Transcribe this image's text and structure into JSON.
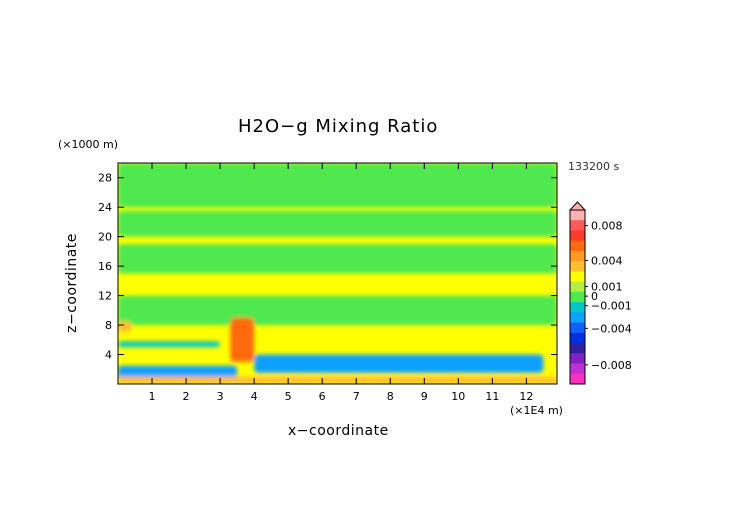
{
  "chart_data": {
    "type": "heatmap",
    "title": "H2O−g Mixing Ratio",
    "xlabel": "x−coordinate",
    "ylabel": "z−coordinate",
    "x_unit": "(×1E4 m)",
    "y_unit": "(×1000 m)",
    "timestamp": "133200 s",
    "xlim": [
      0,
      12.9
    ],
    "ylim": [
      0,
      30
    ],
    "x_ticks": [
      "1",
      "2",
      "3",
      "4",
      "5",
      "6",
      "7",
      "8",
      "9",
      "10",
      "11",
      "12"
    ],
    "y_ticks": [
      "4",
      "8",
      "12",
      "16",
      "20",
      "24",
      "28"
    ],
    "colorbar": {
      "tick_labels": [
        "0.008",
        "0.004",
        "0.001",
        "0",
        "−0.001",
        "−0.004",
        "−0.008"
      ],
      "colors_top_to_bottom": [
        "#ffb0b0",
        "#ff5a5a",
        "#ff3a2a",
        "#ff6a10",
        "#ff9a20",
        "#ffc030",
        "#ffff00",
        "#b4f040",
        "#50e850",
        "#00c8c8",
        "#10a0ff",
        "#1060ff",
        "#0030e0",
        "#3020a0",
        "#8020c0",
        "#c030d0",
        "#ff30c0"
      ]
    },
    "field": [
      {
        "z": [
          0,
          1
        ],
        "x": [
          0,
          12.9
        ],
        "level": "0.001"
      },
      {
        "z": [
          0.5,
          2.5
        ],
        "x": [
          0,
          3.5
        ],
        "level": "−0.004"
      },
      {
        "z": [
          1.5,
          4
        ],
        "x": [
          4,
          12.5
        ],
        "level": "−0.004"
      },
      {
        "z": [
          5,
          5.8
        ],
        "x": [
          0,
          3
        ],
        "level": "−0.001"
      },
      {
        "z": [
          3,
          9
        ],
        "x": [
          3.3,
          4
        ],
        "level": "0.004"
      },
      {
        "z": [
          7,
          8.5
        ],
        "x": [
          0,
          0.4
        ],
        "level": "0.001"
      },
      {
        "z": [
          8,
          12
        ],
        "x": [
          0,
          12.9
        ],
        "level": "0"
      },
      {
        "z": [
          15,
          19
        ],
        "x": [
          0,
          12.9
        ],
        "level": "0"
      },
      {
        "z": [
          20,
          23.5
        ],
        "x": [
          0,
          12.9
        ],
        "level": "0"
      },
      {
        "z": [
          24,
          30
        ],
        "x": [
          0,
          12.9
        ],
        "level": "0"
      }
    ]
  }
}
